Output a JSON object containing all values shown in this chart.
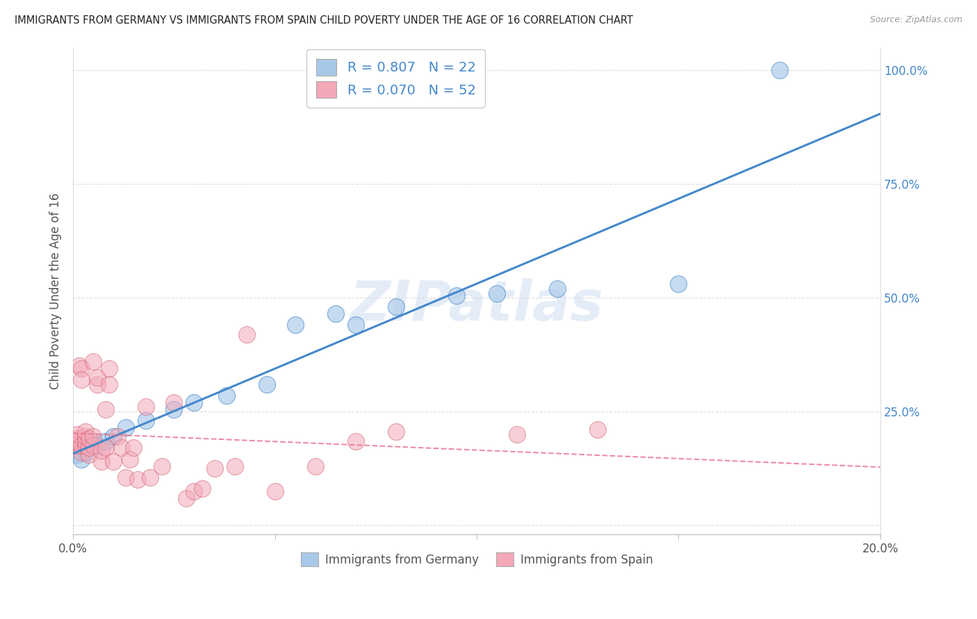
{
  "title": "IMMIGRANTS FROM GERMANY VS IMMIGRANTS FROM SPAIN CHILD POVERTY UNDER THE AGE OF 16 CORRELATION CHART",
  "source": "Source: ZipAtlas.com",
  "ylabel": "Child Poverty Under the Age of 16",
  "legend_labels": [
    "Immigrants from Germany",
    "Immigrants from Spain"
  ],
  "germany_color": "#a8c8e8",
  "spain_color": "#f4a8b8",
  "germany_line_color": "#4488cc",
  "spain_line_color": "#e87890",
  "R_germany": 0.807,
  "N_germany": 22,
  "R_spain": 0.07,
  "N_spain": 52,
  "watermark": "ZIPatlas",
  "germany_x": [
    0.001,
    0.002,
    0.003,
    0.005,
    0.006,
    0.008,
    0.01,
    0.013,
    0.018,
    0.025,
    0.03,
    0.038,
    0.048,
    0.055,
    0.065,
    0.07,
    0.08,
    0.095,
    0.105,
    0.12,
    0.15,
    0.175
  ],
  "germany_y": [
    0.155,
    0.145,
    0.16,
    0.185,
    0.175,
    0.185,
    0.195,
    0.215,
    0.23,
    0.255,
    0.27,
    0.285,
    0.31,
    0.44,
    0.465,
    0.44,
    0.48,
    0.505,
    0.51,
    0.52,
    0.53,
    1.0
  ],
  "spain_x": [
    0.0003,
    0.0005,
    0.0007,
    0.001,
    0.001,
    0.001,
    0.0015,
    0.002,
    0.002,
    0.002,
    0.002,
    0.003,
    0.003,
    0.003,
    0.003,
    0.004,
    0.004,
    0.004,
    0.005,
    0.005,
    0.005,
    0.006,
    0.006,
    0.007,
    0.007,
    0.008,
    0.008,
    0.009,
    0.009,
    0.01,
    0.011,
    0.012,
    0.013,
    0.014,
    0.015,
    0.016,
    0.018,
    0.019,
    0.022,
    0.025,
    0.028,
    0.03,
    0.032,
    0.035,
    0.04,
    0.043,
    0.05,
    0.06,
    0.07,
    0.08,
    0.11,
    0.13
  ],
  "spain_y": [
    0.175,
    0.18,
    0.19,
    0.175,
    0.185,
    0.2,
    0.35,
    0.345,
    0.16,
    0.175,
    0.32,
    0.175,
    0.185,
    0.195,
    0.205,
    0.155,
    0.17,
    0.19,
    0.175,
    0.195,
    0.36,
    0.31,
    0.325,
    0.14,
    0.165,
    0.17,
    0.255,
    0.31,
    0.345,
    0.14,
    0.195,
    0.17,
    0.105,
    0.145,
    0.17,
    0.1,
    0.26,
    0.105,
    0.13,
    0.27,
    0.06,
    0.075,
    0.08,
    0.125,
    0.13,
    0.42,
    0.075,
    0.13,
    0.185,
    0.205,
    0.2,
    0.21
  ],
  "xlim": [
    0,
    0.2
  ],
  "ylim": [
    -0.02,
    1.05
  ],
  "xticks": [
    0,
    0.05,
    0.1,
    0.15,
    0.2
  ],
  "yticks": [
    0.0,
    0.25,
    0.5,
    0.75,
    1.0
  ]
}
